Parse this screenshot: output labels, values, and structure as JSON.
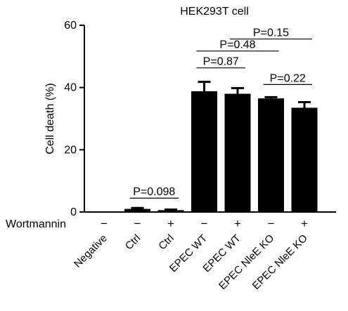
{
  "chart_data": {
    "type": "bar",
    "title": "HEK293T cell",
    "ylabel": "Cell death (%)",
    "ylim": [
      0,
      60
    ],
    "yticks": [
      0,
      20,
      40,
      60
    ],
    "row_label": "Wortmannin",
    "categories": [
      "Negative",
      "Ctrl",
      "Ctrl",
      "EPEC WT",
      "EPEC WT",
      "EPEC NleE KO",
      "EPEC NleE KO"
    ],
    "treatment": [
      "−",
      "−",
      "+",
      "−",
      "+",
      "−",
      "+"
    ],
    "values": [
      0,
      1.0,
      0.6,
      38.8,
      38.0,
      36.5,
      33.5
    ],
    "errors": [
      0,
      0.3,
      0.2,
      3.0,
      1.8,
      0.4,
      1.8
    ],
    "bar_color": "#000000",
    "annotations": [
      {
        "label": "P=0.098",
        "from": 1,
        "to": 2
      },
      {
        "label": "P=0.87",
        "from": 3,
        "to": 4
      },
      {
        "label": "P=0.22",
        "from": 5,
        "to": 6
      },
      {
        "label": "P=0.48",
        "from": 3,
        "to": 5
      },
      {
        "label": "P=0.15",
        "from": 4,
        "to": 6
      }
    ]
  }
}
